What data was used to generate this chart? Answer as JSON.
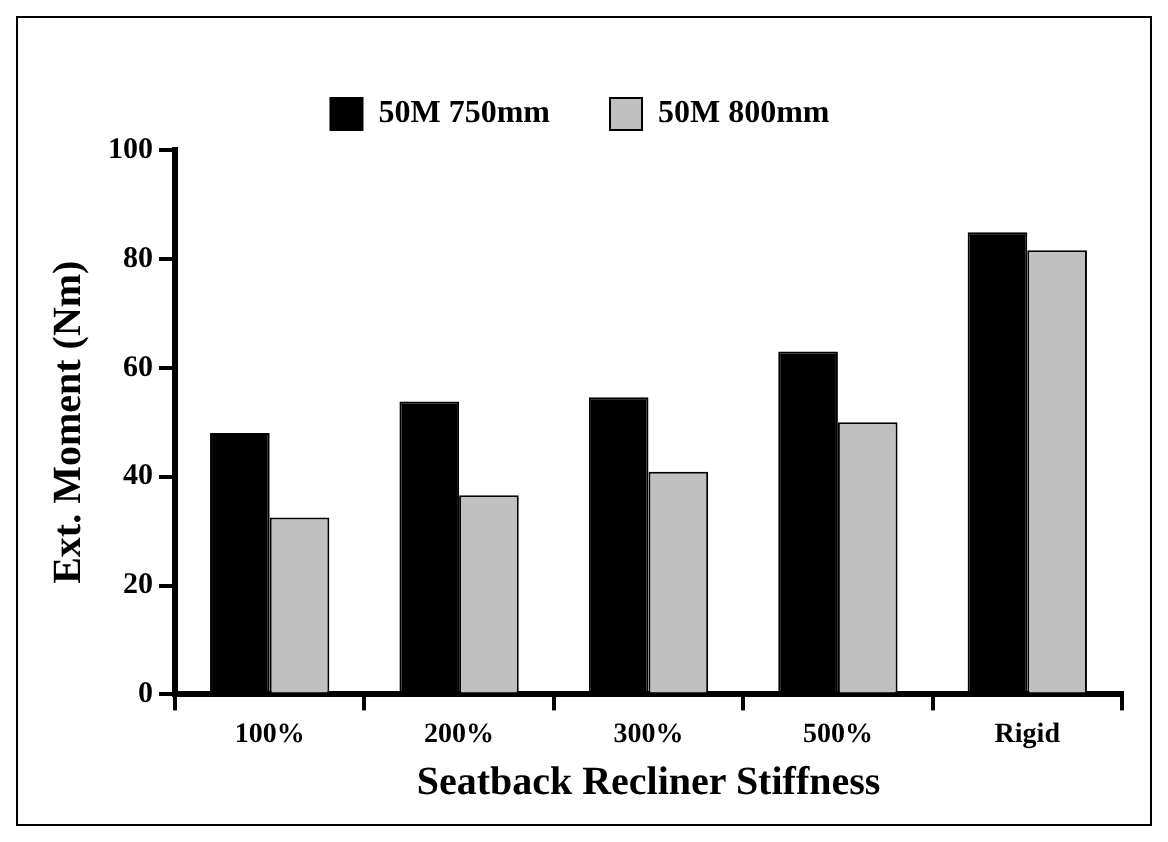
{
  "chart_data": {
    "type": "bar",
    "xlabel": "Seatback Recliner Stiffness",
    "ylabel": "Ext. Moment (Nm)",
    "categories": [
      "100%",
      "200%",
      "300%",
      "500%",
      "Rigid"
    ],
    "series": [
      {
        "name": "50M 750mm",
        "color": "#000000",
        "values": [
          48,
          53.8,
          54.6,
          63,
          84.9
        ]
      },
      {
        "name": "50M 800mm",
        "color": "#c0c0c0",
        "values": [
          32.5,
          36.6,
          40.9,
          50,
          81.6
        ]
      }
    ],
    "ylim": [
      0,
      100
    ],
    "yticks": [
      0,
      20,
      40,
      60,
      80,
      100
    ],
    "grid": false,
    "legend": "top"
  }
}
